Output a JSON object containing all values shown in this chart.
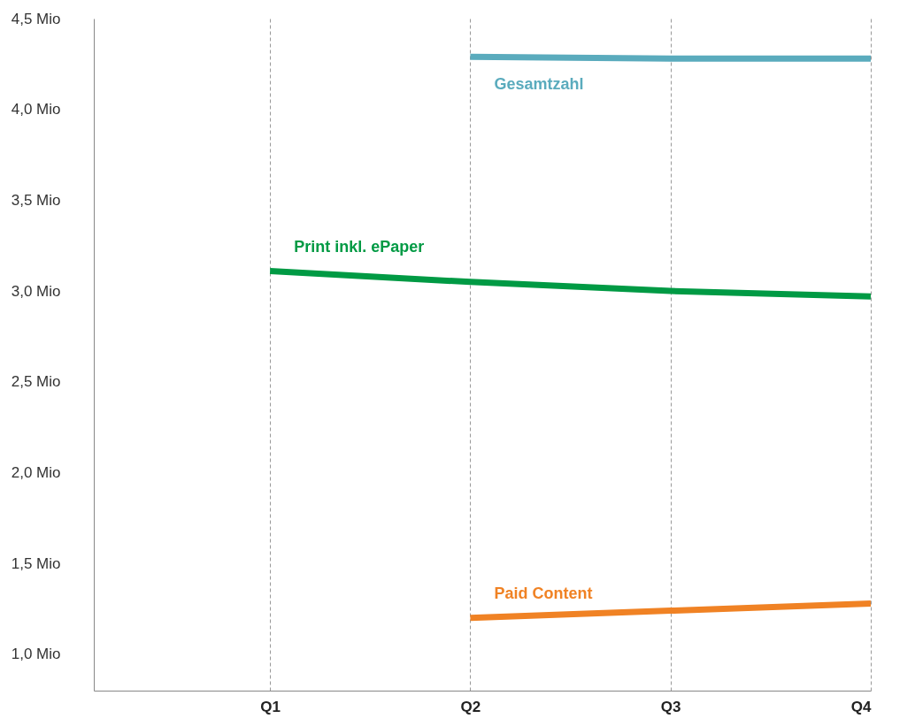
{
  "chart_data": {
    "type": "line",
    "categories": [
      "Q1",
      "Q2",
      "Q3",
      "Q4"
    ],
    "series": [
      {
        "name": "Gesamtzahl",
        "color": "#5aabbd",
        "values": [
          null,
          4.29,
          4.28,
          4.28
        ]
      },
      {
        "name": "Print inkl. ePaper",
        "color": "#009a44",
        "values": [
          3.11,
          3.05,
          3.0,
          2.97
        ]
      },
      {
        "name": "Paid Content",
        "color": "#f08224",
        "values": [
          null,
          1.2,
          1.24,
          1.28
        ]
      }
    ],
    "ylim": [
      0.8,
      4.5
    ],
    "yticks": [
      {
        "value": 1.0,
        "label": "1,0 Mio"
      },
      {
        "value": 1.5,
        "label": "1,5 Mio"
      },
      {
        "value": 2.0,
        "label": "2,0 Mio"
      },
      {
        "value": 2.5,
        "label": "2,5 Mio"
      },
      {
        "value": 3.0,
        "label": "3,0 Mio"
      },
      {
        "value": 3.5,
        "label": "3,5 Mio"
      },
      {
        "value": 4.0,
        "label": "4,0 Mio"
      },
      {
        "value": 4.5,
        "label": "4,5 Mio"
      }
    ],
    "grid": "x",
    "legend": false,
    "marker": "none",
    "line_style": "solid"
  }
}
